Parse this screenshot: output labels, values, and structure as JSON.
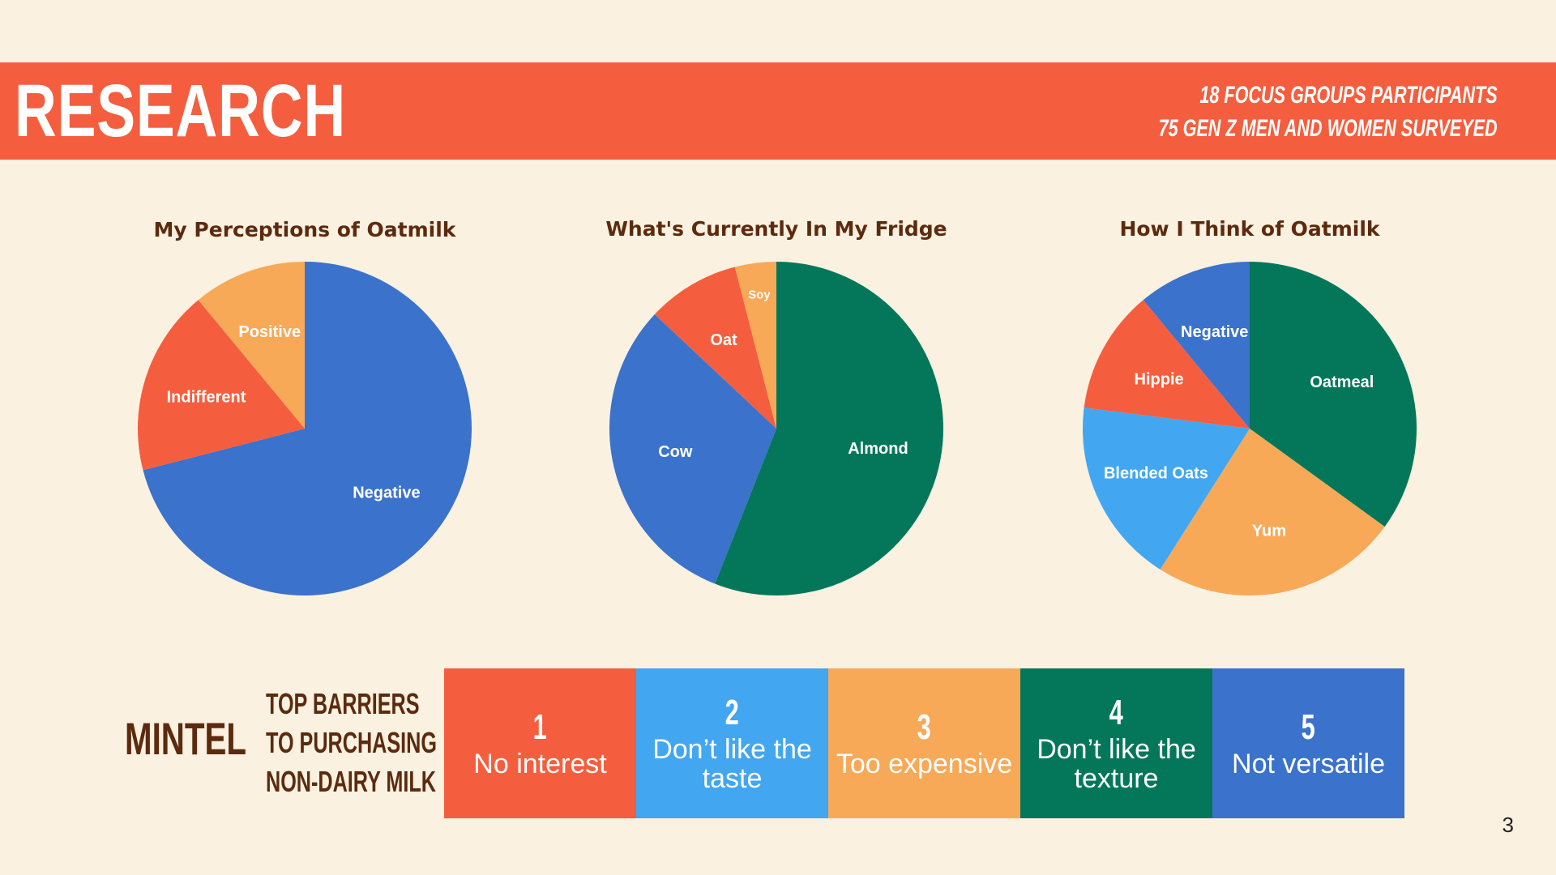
{
  "header": {
    "title": "RESEARCH",
    "sub_lines": [
      "18 FOCUS GROUPS PARTICIPANTS",
      "75 GEN Z MEN AND WOMEN SURVEYED"
    ]
  },
  "colors": {
    "background": "#faf1e0",
    "banner": "#f45e3e",
    "heading_text": "#5c2a0e",
    "red": "#f45e3e",
    "blue": "#3a72cc",
    "light_blue": "#42a6f0",
    "orange": "#f7a958",
    "green": "#04775b"
  },
  "chart_data": [
    {
      "type": "pie",
      "title": "My Perceptions of Oatmilk",
      "slices": [
        {
          "label": "Negative",
          "value": 71,
          "color": "#3a72cc"
        },
        {
          "label": "Indifferent",
          "value": 18,
          "color": "#f45e3e"
        },
        {
          "label": "Positive",
          "value": 11,
          "color": "#f7a958"
        }
      ]
    },
    {
      "type": "pie",
      "title": "What's Currently In My Fridge",
      "slices": [
        {
          "label": "Almond",
          "value": 56,
          "color": "#04775b"
        },
        {
          "label": "Cow",
          "value": 31,
          "color": "#3a72cc"
        },
        {
          "label": "Oat",
          "value": 9,
          "color": "#f45e3e"
        },
        {
          "label": "Soy",
          "value": 4,
          "color": "#f7a958"
        }
      ]
    },
    {
      "type": "pie",
      "title": "How I Think of Oatmilk",
      "slices": [
        {
          "label": "Oatmeal",
          "value": 35,
          "color": "#04775b"
        },
        {
          "label": "Yum",
          "value": 24,
          "color": "#f7a958"
        },
        {
          "label": "Blended Oats",
          "value": 18,
          "color": "#42a6f0"
        },
        {
          "label": "Hippie",
          "value": 12,
          "color": "#f45e3e"
        },
        {
          "label": "Negative",
          "value": 11,
          "color": "#3a72cc"
        }
      ]
    }
  ],
  "mintel": {
    "label": "MINTEL",
    "heading_lines": [
      "TOP BARRIERS",
      "TO PURCHASING",
      "NON-DAIRY MILK"
    ],
    "barriers": [
      {
        "rank": "1",
        "text": "No interest",
        "color": "#f45e3e"
      },
      {
        "rank": "2",
        "text": "Don’t like the taste",
        "color": "#42a6f0"
      },
      {
        "rank": "3",
        "text": "Too expensive",
        "color": "#f7a958"
      },
      {
        "rank": "4",
        "text": "Don’t like the texture",
        "color": "#04775b"
      },
      {
        "rank": "5",
        "text": "Not versatile",
        "color": "#3a72cc"
      }
    ]
  },
  "page_number": "3"
}
